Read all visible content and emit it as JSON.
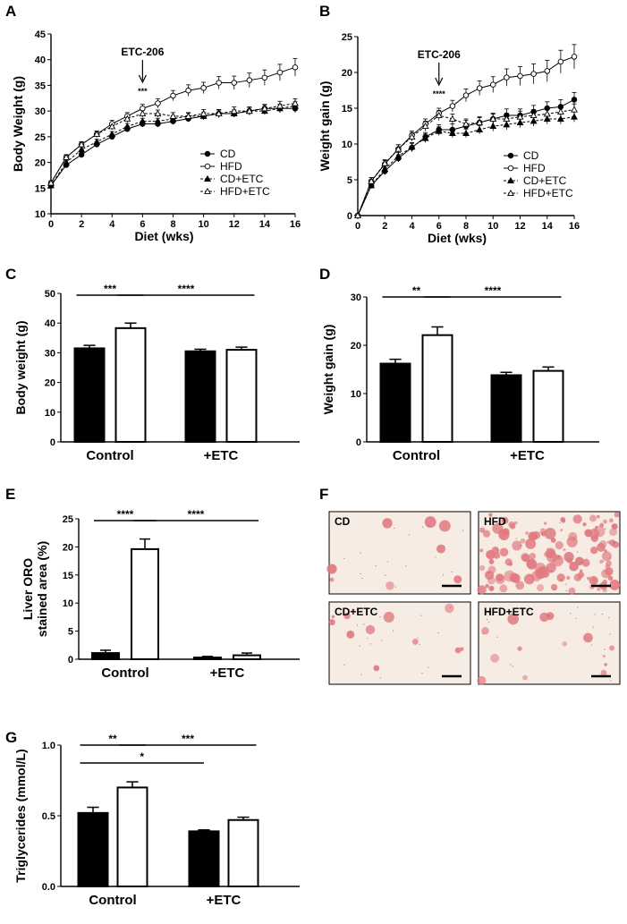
{
  "chart_data": [
    {
      "panel": "A",
      "type": "line",
      "xlabel": "Diet (wks)",
      "ylabel": "Body Weight (g)",
      "xlim": [
        0,
        16
      ],
      "ylim": [
        10,
        45
      ],
      "xticks": [
        0,
        2,
        4,
        6,
        8,
        10,
        12,
        14,
        16
      ],
      "yticks": [
        10,
        15,
        20,
        25,
        30,
        35,
        40,
        45
      ],
      "annotation": {
        "text": "ETC-206",
        "x": 6
      },
      "significance": {
        "text": "***",
        "x": 6
      },
      "legend_position": "bottom-right",
      "x": [
        0,
        1,
        2,
        3,
        4,
        5,
        6,
        7,
        8,
        9,
        10,
        11,
        12,
        13,
        14,
        15,
        16
      ],
      "series": [
        {
          "name": "CD",
          "marker": "filled-circle",
          "line": "solid",
          "values": [
            15.5,
            19.5,
            21.5,
            23.5,
            25,
            26.5,
            27.5,
            27.5,
            28,
            28.5,
            29,
            29.5,
            29.5,
            30,
            30.5,
            30.5,
            30.5
          ],
          "errors": [
            0.4,
            0.4,
            0.4,
            0.4,
            0.5,
            0.5,
            0.6,
            0.6,
            0.6,
            0.6,
            0.7,
            0.7,
            0.7,
            0.7,
            0.7,
            0.8,
            0.8
          ]
        },
        {
          "name": "HFD",
          "marker": "open-circle",
          "line": "solid",
          "values": [
            16,
            21,
            23.5,
            25.5,
            27.5,
            29,
            30.5,
            31.5,
            33,
            34,
            34.5,
            35.5,
            35.5,
            36,
            36.5,
            37.5,
            38.5
          ],
          "errors": [
            0.4,
            0.5,
            0.5,
            0.6,
            0.7,
            0.7,
            0.8,
            0.9,
            1.0,
            1.1,
            1.1,
            1.2,
            1.3,
            1.4,
            1.5,
            1.6,
            1.7
          ]
        },
        {
          "name": "CD+ETC",
          "marker": "filled-triangle",
          "line": "dashed",
          "values": [
            15.5,
            20,
            22.5,
            24,
            25.5,
            27,
            28,
            28,
            28.5,
            29,
            29,
            29.5,
            29.5,
            30,
            30,
            30.5,
            31
          ],
          "errors": [
            0.4,
            0.4,
            0.5,
            0.5,
            0.5,
            0.6,
            0.6,
            0.6,
            0.6,
            0.6,
            0.7,
            0.7,
            0.7,
            0.7,
            0.7,
            0.8,
            0.8
          ]
        },
        {
          "name": "HFD+ETC",
          "marker": "open-triangle",
          "line": "dashed",
          "values": [
            16,
            21,
            23.5,
            25.5,
            27,
            28.5,
            29.5,
            29.5,
            29,
            29,
            29.5,
            29.5,
            30,
            30,
            30.5,
            31,
            31.5
          ],
          "errors": [
            0.4,
            0.5,
            0.5,
            0.6,
            0.6,
            0.7,
            0.7,
            0.7,
            0.7,
            0.7,
            0.8,
            0.8,
            0.8,
            0.8,
            0.8,
            0.9,
            0.9
          ]
        }
      ]
    },
    {
      "panel": "B",
      "type": "line",
      "xlabel": "Diet (wks)",
      "ylabel": "Weight gain (g)",
      "xlim": [
        0,
        16
      ],
      "ylim": [
        0,
        25
      ],
      "xticks": [
        0,
        2,
        4,
        6,
        8,
        10,
        12,
        14,
        16
      ],
      "yticks": [
        0,
        5,
        10,
        15,
        20,
        25
      ],
      "annotation": {
        "text": "ETC-206",
        "x": 6
      },
      "significance": {
        "text": "****",
        "x": 6
      },
      "legend_position": "bottom-right",
      "x": [
        0,
        1,
        2,
        3,
        4,
        5,
        6,
        7,
        8,
        9,
        10,
        11,
        12,
        13,
        14,
        15,
        16
      ],
      "series": [
        {
          "name": "CD",
          "marker": "filled-circle",
          "line": "solid",
          "values": [
            0,
            4.2,
            6.2,
            8,
            9.5,
            11,
            12,
            12,
            12.5,
            13,
            13.5,
            14,
            14,
            14.5,
            15,
            15.2,
            16.2
          ],
          "errors": [
            0.1,
            0.4,
            0.5,
            0.5,
            0.6,
            0.6,
            0.7,
            0.8,
            0.8,
            0.8,
            0.8,
            0.9,
            0.9,
            0.9,
            0.9,
            1.0,
            1.0
          ]
        },
        {
          "name": "HFD",
          "marker": "open-circle",
          "line": "solid",
          "values": [
            0,
            4.8,
            7.2,
            9.3,
            11.2,
            12.8,
            14.3,
            15.3,
            16.8,
            17.8,
            18.3,
            19.3,
            19.5,
            19.8,
            20.2,
            21.5,
            22.2
          ],
          "errors": [
            0.1,
            0.5,
            0.5,
            0.6,
            0.6,
            0.7,
            0.7,
            0.8,
            0.9,
            1.0,
            1.1,
            1.2,
            1.3,
            1.4,
            1.5,
            1.6,
            1.7
          ]
        },
        {
          "name": "CD+ETC",
          "marker": "filled-triangle",
          "line": "dashed",
          "values": [
            0,
            4.2,
            6.5,
            8.3,
            9.6,
            10.8,
            11.8,
            11.5,
            11.5,
            12,
            12.5,
            12.7,
            13,
            13.2,
            13.5,
            13.5,
            13.8
          ],
          "errors": [
            0.1,
            0.4,
            0.5,
            0.5,
            0.6,
            0.6,
            0.6,
            0.6,
            0.6,
            0.6,
            0.7,
            0.7,
            0.7,
            0.7,
            0.7,
            0.7,
            0.7
          ]
        },
        {
          "name": "HFD+ETC",
          "marker": "open-triangle",
          "line": "dashed",
          "values": [
            0,
            4.8,
            7.3,
            9.3,
            11,
            12.5,
            14,
            13.5,
            12.8,
            13,
            13.5,
            13.5,
            13.8,
            14,
            14.2,
            14.5,
            14.8
          ],
          "errors": [
            0.1,
            0.5,
            0.5,
            0.6,
            0.6,
            0.7,
            0.7,
            0.7,
            0.7,
            0.7,
            0.7,
            0.8,
            0.8,
            0.8,
            0.8,
            0.8,
            0.8
          ]
        }
      ]
    },
    {
      "panel": "C",
      "type": "bar",
      "ylabel": "Body weight (g)",
      "ylim": [
        0,
        50
      ],
      "yticks": [
        0,
        10,
        20,
        30,
        40,
        50
      ],
      "groups": [
        "Control",
        "+ETC"
      ],
      "bars": [
        {
          "group": 0,
          "fill": "black",
          "value": 31.5,
          "error": 1.0
        },
        {
          "group": 0,
          "fill": "white",
          "value": 38.3,
          "error": 1.7
        },
        {
          "group": 1,
          "fill": "black",
          "value": 30.5,
          "error": 0.7
        },
        {
          "group": 1,
          "fill": "white",
          "value": 31,
          "error": 0.9
        }
      ],
      "significance": [
        {
          "from": 0,
          "to": 1,
          "text": "***"
        },
        {
          "from": 1,
          "to": 3,
          "text": "****"
        }
      ]
    },
    {
      "panel": "D",
      "type": "bar",
      "ylabel": "Weight gain (g)",
      "ylim": [
        0,
        30
      ],
      "yticks": [
        0,
        10,
        20,
        30
      ],
      "groups": [
        "Control",
        "+ETC"
      ],
      "bars": [
        {
          "group": 0,
          "fill": "black",
          "value": 16.2,
          "error": 0.9
        },
        {
          "group": 0,
          "fill": "white",
          "value": 22.1,
          "error": 1.7
        },
        {
          "group": 1,
          "fill": "black",
          "value": 13.8,
          "error": 0.6
        },
        {
          "group": 1,
          "fill": "white",
          "value": 14.7,
          "error": 0.8
        }
      ],
      "significance": [
        {
          "from": 0,
          "to": 1,
          "text": "**"
        },
        {
          "from": 1,
          "to": 3,
          "text": "****"
        }
      ]
    },
    {
      "panel": "E",
      "type": "bar",
      "ylabel": "Liver ORO stained area (%)",
      "ylabel_lines": [
        "Liver ORO",
        "stained area (%)"
      ],
      "ylim": [
        0,
        25
      ],
      "yticks": [
        0,
        5,
        10,
        15,
        20,
        25
      ],
      "groups": [
        "Control",
        "+ETC"
      ],
      "bars": [
        {
          "group": 0,
          "fill": "black",
          "value": 1.1,
          "error": 0.5
        },
        {
          "group": 0,
          "fill": "white",
          "value": 19.6,
          "error": 1.8
        },
        {
          "group": 1,
          "fill": "black",
          "value": 0.3,
          "error": 0.2
        },
        {
          "group": 1,
          "fill": "white",
          "value": 0.7,
          "error": 0.4
        }
      ],
      "significance": [
        {
          "from": 0,
          "to": 1,
          "text": "****"
        },
        {
          "from": 1,
          "to": 3,
          "text": "****"
        }
      ]
    },
    {
      "panel": "G",
      "type": "bar",
      "ylabel": "Triglycerides (mmol/L)",
      "ylim": [
        0,
        1
      ],
      "yticks": [
        "0.0",
        "0.5",
        "1.0"
      ],
      "groups": [
        "Control",
        "+ETC"
      ],
      "bars": [
        {
          "group": 0,
          "fill": "black",
          "value": 0.52,
          "error": 0.04
        },
        {
          "group": 0,
          "fill": "white",
          "value": 0.7,
          "error": 0.04
        },
        {
          "group": 1,
          "fill": "black",
          "value": 0.39,
          "error": 0.01
        },
        {
          "group": 1,
          "fill": "white",
          "value": 0.47,
          "error": 0.02
        }
      ],
      "significance": [
        {
          "from": 0,
          "to": 1,
          "text": "**"
        },
        {
          "from": 1,
          "to": 3,
          "text": "***"
        },
        {
          "from": 0,
          "to": 2,
          "text": "*"
        }
      ]
    }
  ],
  "micrographs": {
    "panel": "F",
    "images": [
      {
        "label": "CD",
        "stain_level": 0.05
      },
      {
        "label": "HFD",
        "stain_level": 0.85
      },
      {
        "label": "CD+ETC",
        "stain_level": 0.08
      },
      {
        "label": "HFD+ETC",
        "stain_level": 0.1
      }
    ]
  },
  "colors": {
    "tissue_background": "#f6ece4",
    "lipid_stain": "#e07a80",
    "speckle": "#5a4640"
  }
}
